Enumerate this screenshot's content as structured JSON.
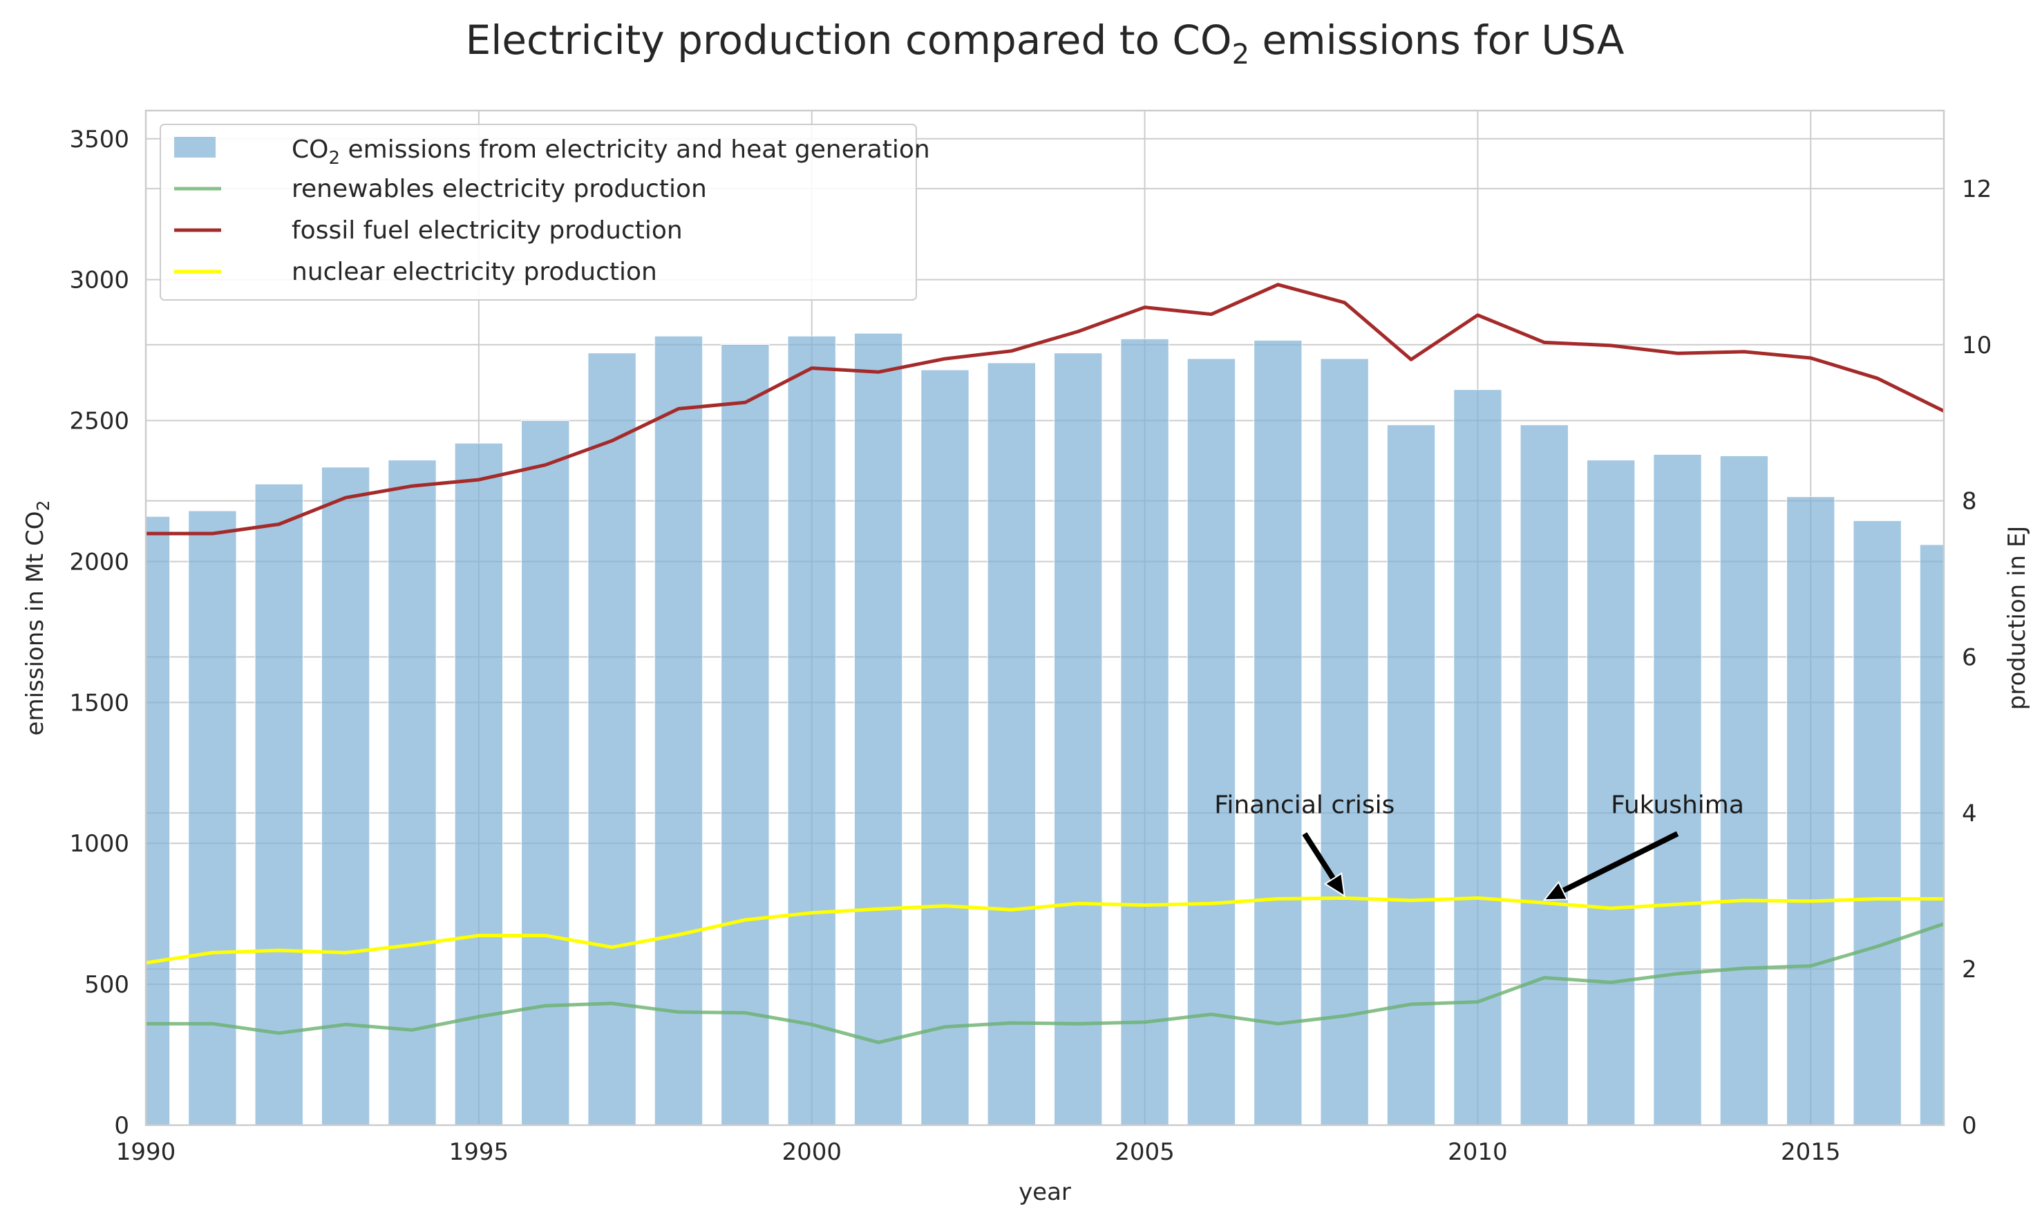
{
  "chart_data": {
    "type": "bar",
    "title": "Electricity production compared to CO₂ emissions for USA",
    "title_parts": {
      "prefix": "Electricity production compared to CO",
      "sub": "2",
      "suffix": " emissions for USA"
    },
    "xlabel": "year",
    "ylabel_left": {
      "prefix": "emissions in Mt CO",
      "sub": "2"
    },
    "ylabel_right": "production in EJ",
    "xlim": [
      1990,
      2017
    ],
    "ylim_left": [
      0,
      3600
    ],
    "ylim_right": [
      0,
      13
    ],
    "x_ticks": [
      "1990",
      "1995",
      "2000",
      "2005",
      "2010",
      "2015"
    ],
    "y_left_ticks": [
      "0",
      "500",
      "1000",
      "1500",
      "2000",
      "2500",
      "3000",
      "3500"
    ],
    "y_right_ticks": [
      "0",
      "2",
      "4",
      "6",
      "8",
      "10",
      "12"
    ],
    "grid": true,
    "legend_position": "upper-left",
    "years": [
      1990,
      1991,
      1992,
      1993,
      1994,
      1995,
      1996,
      1997,
      1998,
      1999,
      2000,
      2001,
      2002,
      2003,
      2004,
      2005,
      2006,
      2007,
      2008,
      2009,
      2010,
      2011,
      2012,
      2013,
      2014,
      2015,
      2016,
      2017
    ],
    "bars": {
      "name": {
        "prefix": "CO",
        "sub": "2",
        "suffix": " emissions from electricity and heat generation"
      },
      "color": "#7eb1d6",
      "values": [
        2160,
        2180,
        2275,
        2335,
        2360,
        2420,
        2500,
        2740,
        2800,
        2770,
        2800,
        2810,
        2680,
        2705,
        2740,
        2790,
        2720,
        2785,
        2720,
        2485,
        2610,
        2485,
        2360,
        2380,
        2375,
        2230,
        2145,
        2060
      ]
    },
    "series": [
      {
        "name": "renewables electricity production",
        "color": "#6ab06e",
        "values": [
          1.3,
          1.3,
          1.18,
          1.29,
          1.22,
          1.39,
          1.53,
          1.56,
          1.45,
          1.44,
          1.29,
          1.06,
          1.26,
          1.31,
          1.3,
          1.32,
          1.42,
          1.3,
          1.4,
          1.55,
          1.58,
          1.89,
          1.83,
          1.94,
          2.01,
          2.04,
          2.29,
          2.58
        ]
      },
      {
        "name": "fossil fuel electricity production",
        "color": "#a52a2a",
        "values": [
          7.58,
          7.58,
          7.7,
          8.04,
          8.19,
          8.27,
          8.46,
          8.77,
          9.18,
          9.26,
          9.7,
          9.65,
          9.82,
          9.92,
          10.17,
          10.48,
          10.39,
          10.77,
          10.54,
          9.81,
          10.38,
          10.03,
          9.99,
          9.89,
          9.91,
          9.83,
          9.57,
          9.15
        ]
      },
      {
        "name": "nuclear electricity production",
        "color": "#ffff00",
        "values": [
          2.08,
          2.21,
          2.24,
          2.21,
          2.31,
          2.43,
          2.43,
          2.28,
          2.44,
          2.63,
          2.72,
          2.77,
          2.81,
          2.76,
          2.84,
          2.82,
          2.84,
          2.9,
          2.91,
          2.88,
          2.91,
          2.85,
          2.78,
          2.83,
          2.88,
          2.87,
          2.9,
          2.9
        ]
      }
    ],
    "annotations": [
      {
        "text": "Financial crisis",
        "x": 2008,
        "y": 2.9,
        "text_x": 2007.4,
        "text_y": 4.0
      },
      {
        "text": "Fukushima",
        "x": 2011,
        "y": 2.85,
        "text_x": 2013.0,
        "text_y": 4.0
      }
    ]
  }
}
